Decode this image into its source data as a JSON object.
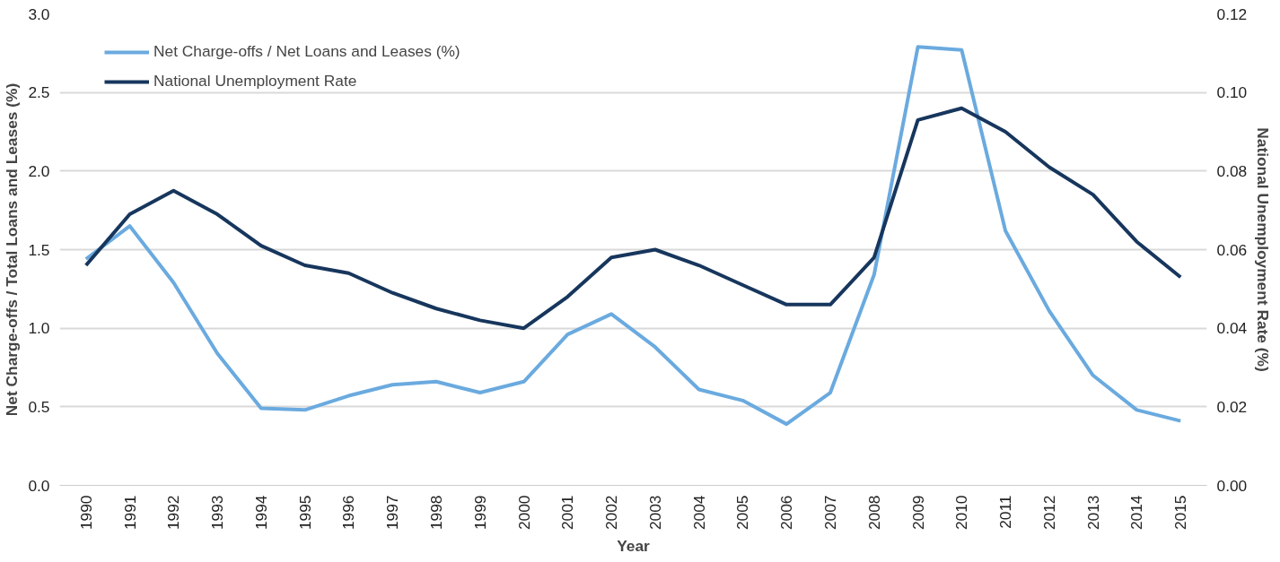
{
  "chart_data": {
    "type": "line",
    "xlabel": "Year",
    "ylabel": "Net Charge-offs / Total Loans and Leases (%)",
    "y2label": "National Unemployment Rate (%)",
    "categories": [
      "1990",
      "1991",
      "1992",
      "1993",
      "1994",
      "1995",
      "1996",
      "1997",
      "1998",
      "1999",
      "2000",
      "2001",
      "2002",
      "2003",
      "2004",
      "2005",
      "2006",
      "2007",
      "2008",
      "2009",
      "2010",
      "2011",
      "2012",
      "2013",
      "2014",
      "2015"
    ],
    "series": [
      {
        "name": "Net Charge-offs / Net Loans and Leases (%)",
        "color": "#6aaadf",
        "values": [
          1.44,
          1.65,
          1.29,
          0.84,
          0.49,
          0.48,
          0.57,
          0.64,
          0.66,
          0.59,
          0.66,
          0.96,
          1.09,
          0.88,
          0.61,
          0.54,
          0.39,
          0.59,
          1.34,
          2.79,
          2.77,
          1.62,
          1.11,
          0.7,
          0.48,
          0.41
        ]
      },
      {
        "name": "National Unemployment Rate",
        "color": "#17365d",
        "axis": "y2",
        "values": [
          0.056,
          0.069,
          0.075,
          0.069,
          0.061,
          0.056,
          0.054,
          0.049,
          0.045,
          0.042,
          0.04,
          0.048,
          0.058,
          0.06,
          0.056,
          0.051,
          0.046,
          0.046,
          0.058,
          0.093,
          0.096,
          0.09,
          0.081,
          0.074,
          0.062,
          0.053
        ]
      }
    ],
    "ylim": [
      0,
      3
    ],
    "yticks": [
      {
        "value": 0,
        "label": "0.0"
      },
      {
        "value": 0.5,
        "label": "0.5"
      },
      {
        "value": 1,
        "label": "1.0"
      },
      {
        "value": 1.5,
        "label": "1.5"
      },
      {
        "value": 2,
        "label": "2.0"
      },
      {
        "value": 2.5,
        "label": "2.5"
      },
      {
        "value": 3,
        "label": "3.0"
      }
    ],
    "y2lim": [
      0,
      0.12
    ],
    "y2ticks": [
      {
        "value": 0,
        "label": "0.00"
      },
      {
        "value": 0.02,
        "label": "0.02"
      },
      {
        "value": 0.04,
        "label": "0.04"
      },
      {
        "value": 0.06,
        "label": "0.06"
      },
      {
        "value": 0.08,
        "label": "0.08"
      },
      {
        "value": 0.1,
        "label": "0.10"
      },
      {
        "value": 0.12,
        "label": "0.12"
      }
    ],
    "grid": "y",
    "legend": "top left",
    "line_style": "solid",
    "marker": "none"
  }
}
